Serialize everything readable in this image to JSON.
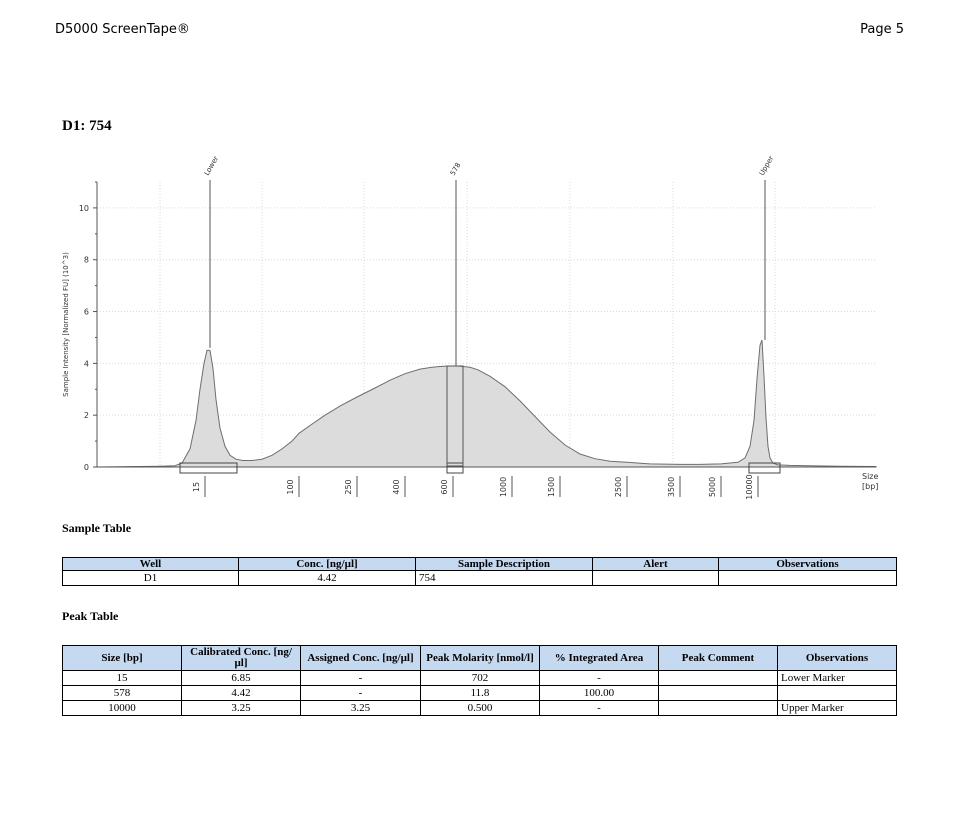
{
  "header": {
    "product": "D5000 ScreenTape®",
    "page": "Page 5"
  },
  "sample_title": "D1: 754",
  "chart_data": {
    "type": "area",
    "ylabel": "Sample Intensity [Normalized FU] (10^3)",
    "xlabel": "Size\n[bp]",
    "xlabel_lines": [
      "Size",
      "[bp]"
    ],
    "ylim": [
      0,
      11
    ],
    "y_ticks": [
      0,
      2,
      4,
      6,
      8,
      10
    ],
    "y_tick_labels": [
      "0",
      "2",
      "4",
      "6",
      "8",
      "10"
    ],
    "x_ticks": [
      "15",
      "100",
      "250",
      "400",
      "600",
      "1000",
      "1500",
      "2500",
      "3500",
      "5000",
      "10000"
    ],
    "grid": true,
    "peaks": [
      {
        "label": "Lower",
        "size": "15",
        "height": 4.6
      },
      {
        "label": "578",
        "size": "578",
        "height": 3.9
      },
      {
        "label": "Upper",
        "size": "10000",
        "height": 4.9
      }
    ],
    "fill_color": "#dcdcdc",
    "line_color": "#6e6e6e"
  },
  "sample_table": {
    "title": "Sample Table",
    "columns": [
      "Well",
      "Conc. [ng/µl]",
      "Sample Description",
      "Alert",
      "Observations"
    ],
    "rows": [
      [
        "D1",
        "4.42",
        "754",
        "",
        ""
      ]
    ]
  },
  "peak_table": {
    "title": "Peak Table",
    "columns": [
      "Size [bp]",
      "Calibrated Conc. [ng/µl]",
      "Assigned Conc. [ng/µl]",
      "Peak Molarity [nmol/l]",
      "% Integrated Area",
      "Peak Comment",
      "Observations"
    ],
    "rows": [
      [
        "15",
        "6.85",
        "-",
        "702",
        "-",
        "",
        "Lower Marker"
      ],
      [
        "578",
        "4.42",
        "-",
        "11.8",
        "100.00",
        "",
        ""
      ],
      [
        "10000",
        "3.25",
        "3.25",
        "0.500",
        "-",
        "",
        "Upper Marker"
      ]
    ]
  },
  "colors": {
    "table_header_bg": "#c5d9f1"
  }
}
